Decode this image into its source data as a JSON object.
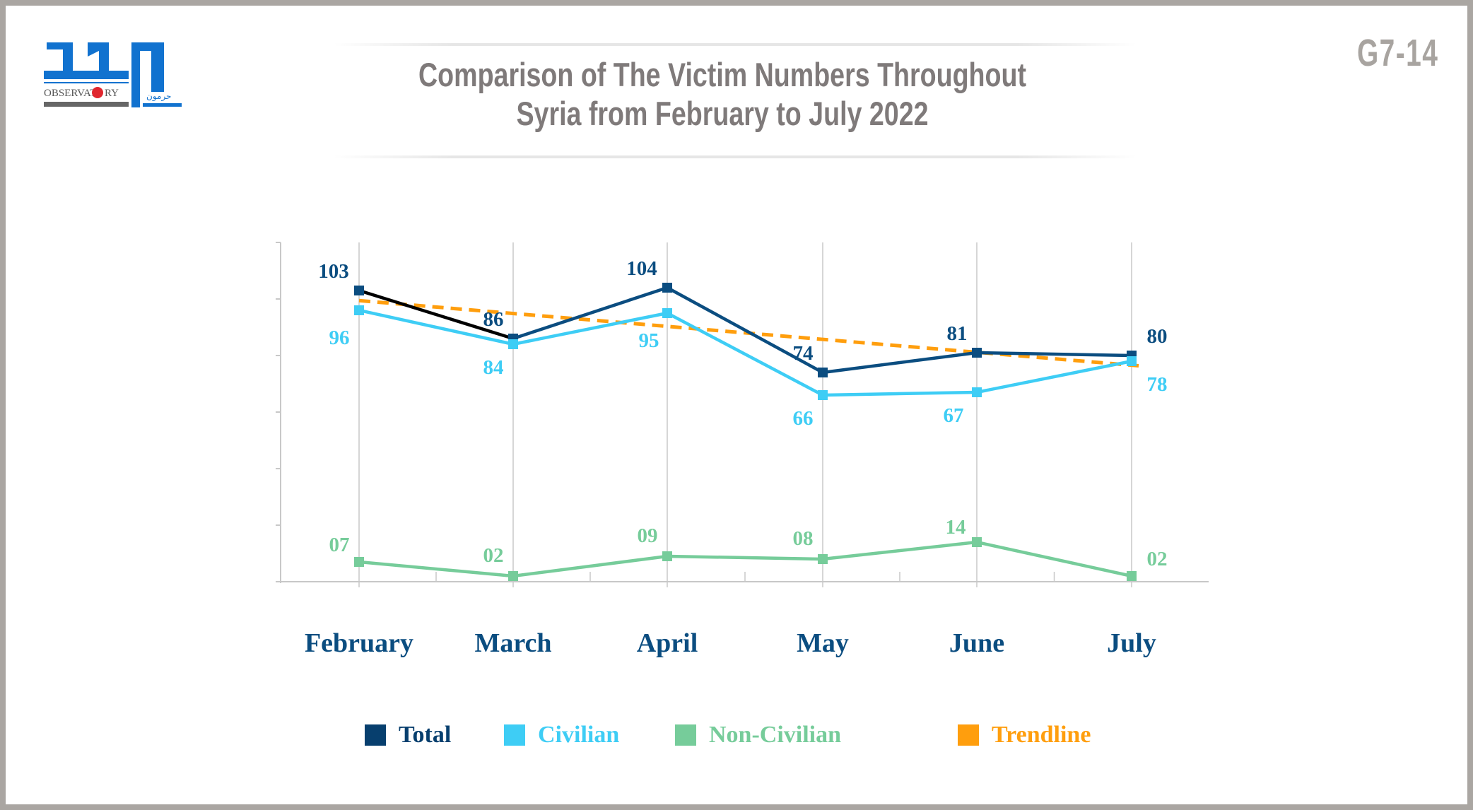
{
  "header": {
    "logo_text": "OBSERVATORY HARMOON",
    "code": "G7-14",
    "title_line1": "Comparison of The Victim Numbers Throughout",
    "title_line2": "Syria from February to July 2022"
  },
  "chart_data": {
    "type": "line",
    "title": "Comparison of The Victim Numbers Throughout Syria from February to July 2022",
    "categories": [
      "February",
      "March",
      "April",
      "May",
      "June",
      "July"
    ],
    "ylim": [
      0,
      120
    ],
    "y_ticks": [
      0,
      20,
      40,
      60,
      80,
      100,
      120
    ],
    "y_tick_labels_shown": false,
    "grid": "vertical",
    "legend_placement": "bottom",
    "series": [
      {
        "name": "Total",
        "values": [
          103,
          86,
          104,
          74,
          81,
          80
        ],
        "labels": [
          "103",
          "86",
          "104",
          "74",
          "81",
          "80"
        ],
        "color": "#0b4d80"
      },
      {
        "name": "Civilian",
        "values": [
          96,
          84,
          95,
          66,
          67,
          78
        ],
        "labels": [
          "96",
          "84",
          "95",
          "66",
          "67",
          "78"
        ],
        "color": "#3ecdf5"
      },
      {
        "name": "Non-Civilian",
        "values": [
          7,
          2,
          9,
          8,
          14,
          2
        ],
        "labels": [
          "07",
          "02",
          "09",
          "08",
          "14",
          "02"
        ],
        "color": "#76cc9a"
      }
    ],
    "trendline": {
      "name": "Trendline",
      "of": "Total",
      "type": "linear",
      "color": "#ff9e0d"
    }
  }
}
